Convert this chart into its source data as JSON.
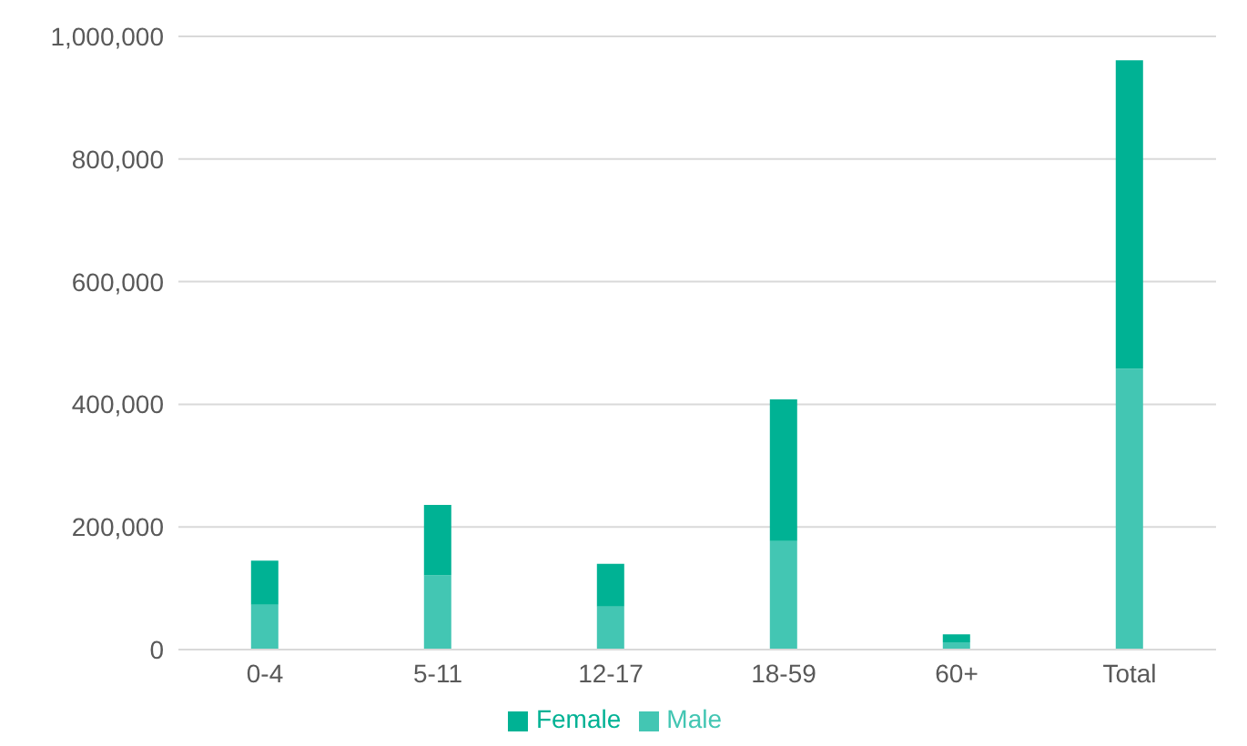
{
  "chart_data": {
    "type": "bar",
    "stacked": true,
    "categories": [
      "0-4",
      "5-11",
      "12-17",
      "18-59",
      "60+",
      "Total"
    ],
    "series": [
      {
        "name": "Male",
        "color": "#43c6b3",
        "values": [
          73000,
          121000,
          70000,
          177000,
          12000,
          458000
        ]
      },
      {
        "name": "Female",
        "color": "#00b294",
        "values": [
          72000,
          115000,
          70000,
          231000,
          13000,
          503000
        ]
      }
    ],
    "ylim": [
      0,
      1000000
    ],
    "yticks": [
      {
        "value": 0,
        "label": "0"
      },
      {
        "value": 200000,
        "label": "200,000"
      },
      {
        "value": 400000,
        "label": "400,000"
      },
      {
        "value": 600000,
        "label": "600,000"
      },
      {
        "value": 800000,
        "label": "800,000"
      },
      {
        "value": 1000000,
        "label": "1,000,000"
      }
    ],
    "grid": "y",
    "legend": "bottom"
  }
}
